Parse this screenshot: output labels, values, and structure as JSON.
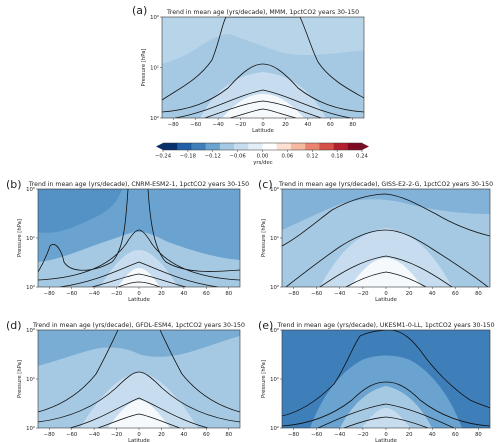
{
  "colors": {
    "c_m006": "#c7ddef",
    "c_m012": "#a6c9e3",
    "c_m018": "#6aa3cf",
    "c_m024": "#3e7fba",
    "c_zero": "#f5f9fc",
    "contour": "#111111"
  },
  "colorbar": {
    "ticks": [
      "−0.24",
      "−0.18",
      "−0.12",
      "−0.06",
      "0.00",
      "0.06",
      "0.12",
      "0.18",
      "0.24"
    ],
    "label": "yrs/dec",
    "range": [
      -0.24,
      0.24
    ],
    "colors": [
      "#08306b",
      "#1f5fa8",
      "#3e7fba",
      "#6aa3cf",
      "#a6c9e3",
      "#c7ddef",
      "#e4eef6",
      "#ffffff",
      "#fde0d2",
      "#f6b8a0",
      "#ea8471",
      "#d6504a",
      "#b31f31",
      "#7f0a24"
    ]
  },
  "panels": [
    {
      "id": "a",
      "letter": "(a)",
      "title": "Trend in mean age (yrs/decade), MMM, 1pctCO2 years 30-150"
    },
    {
      "id": "b",
      "letter": "(b)",
      "title": "Trend in mean age (yrs/decade), CNRM-ESM2-1, 1pctCO2 years 30-150"
    },
    {
      "id": "c",
      "letter": "(c)",
      "title": "Trend in mean age (yrs/decade), GISS-E2-2-G, 1pctCO2 years 30-150"
    },
    {
      "id": "d",
      "letter": "(d)",
      "title": "Trend in mean age (yrs/decade), GFDL-ESM4, 1pctCO2 years 30-150"
    },
    {
      "id": "e",
      "letter": "(e)",
      "title": "Trend in mean age (yrs/decade), UKESM1-0-LL, 1pctCO2 years 30-150"
    }
  ],
  "chart_data": [
    {
      "type": "heatmap",
      "panel": "a",
      "xlabel": "Latitude",
      "ylabel": "Pressure [hPa]",
      "xticks": [
        -80,
        -60,
        -40,
        -20,
        0,
        20,
        40,
        60,
        80
      ],
      "yticks": [
        "10⁰",
        "10¹",
        "10²"
      ],
      "xlim": [
        -90,
        90
      ],
      "ylim_hPa": [
        100,
        1
      ],
      "yscale": "log",
      "dominant_trend": -0.09
    },
    {
      "type": "heatmap",
      "panel": "b",
      "xlabel": "Latitude",
      "ylabel": "Pressure [hPa]",
      "xticks": [
        -80,
        -60,
        -40,
        -20,
        0,
        20,
        40,
        60,
        80
      ],
      "yticks": [
        "10⁰",
        "10¹",
        "10²"
      ],
      "xlim": [
        -90,
        90
      ],
      "ylim_hPa": [
        100,
        1
      ],
      "yscale": "log",
      "dominant_trend": -0.16
    },
    {
      "type": "heatmap",
      "panel": "c",
      "xlabel": "Latitude",
      "ylabel": "Pressure [hPa]",
      "xticks": [
        -80,
        -60,
        -40,
        -20,
        0,
        20,
        40,
        60,
        80
      ],
      "yticks": [
        "10⁰",
        "10¹",
        "10²"
      ],
      "xlim": [
        -90,
        90
      ],
      "ylim_hPa": [
        100,
        1
      ],
      "yscale": "log",
      "dominant_trend": -0.08
    },
    {
      "type": "heatmap",
      "panel": "d",
      "xlabel": "Latitude",
      "ylabel": "Pressure [hPa]",
      "xticks": [
        -80,
        -60,
        -40,
        -20,
        0,
        20,
        40,
        60,
        80
      ],
      "yticks": [
        "10⁰",
        "10¹",
        "10²"
      ],
      "xlim": [
        -90,
        90
      ],
      "ylim_hPa": [
        100,
        1
      ],
      "yscale": "log",
      "dominant_trend": -0.12
    },
    {
      "type": "heatmap",
      "panel": "e",
      "xlabel": "Latitude",
      "ylabel": "Pressure [hPa]",
      "xticks": [
        -80,
        -60,
        -40,
        -20,
        0,
        20,
        40,
        60,
        80
      ],
      "yticks": [
        "10⁰",
        "10¹",
        "10²"
      ],
      "xlim": [
        -90,
        90
      ],
      "ylim_hPa": [
        100,
        1
      ],
      "yscale": "log",
      "dominant_trend": -0.19
    }
  ]
}
